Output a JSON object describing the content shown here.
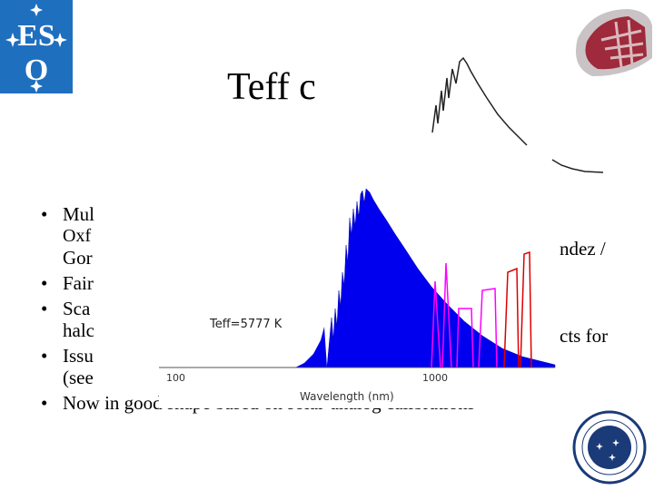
{
  "slide": {
    "title": "Teff c",
    "bullets": [
      {
        "lines": [
          "Mul",
          "Oxf",
          "Gor"
        ],
        "tail_right": "ndez /"
      },
      {
        "lines": [
          "Fair"
        ]
      },
      {
        "lines": [
          "Sca",
          "halc"
        ],
        "tail_right": "cts for"
      },
      {
        "lines": [
          "Issu",
          "(see"
        ]
      },
      {
        "lines": [
          "Now in good shape based on solar-analog calibrations"
        ]
      }
    ]
  },
  "chart_data": {
    "type": "area",
    "annotation": "Teff=5777 K",
    "xlabel": "Wavelength (nm)",
    "x_ticks": [
      "100",
      "1000"
    ],
    "x_scale": "log",
    "series": [
      {
        "color": "#0000ee"
      },
      {
        "color": "#ff00ff"
      },
      {
        "color": "#dd0000"
      }
    ]
  },
  "colors": {
    "spectrum_fill": "#0000ee",
    "filter_magenta": "#ff00ff",
    "filter_red": "#dd0000",
    "eso_blue": "#1f6fbf"
  },
  "logos": {
    "eso": "ESO",
    "iac": "IAC"
  }
}
